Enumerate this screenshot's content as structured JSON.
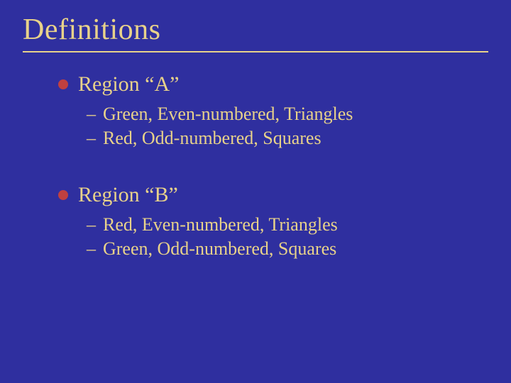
{
  "colors": {
    "background": "#2f2f9f",
    "text": "#e8d28a",
    "bullet": "#c04040",
    "underline": "#e8d28a"
  },
  "typography": {
    "title_fontsize": 42,
    "main_fontsize": 30,
    "sub_fontsize": 26,
    "font_family": "Times New Roman"
  },
  "title": "Definitions",
  "groups": [
    {
      "heading": "Region “A”",
      "items": [
        "Green, Even-numbered, Triangles",
        "Red, Odd-numbered, Squares"
      ]
    },
    {
      "heading": "Region “B”",
      "items": [
        "Red, Even-numbered, Triangles",
        "Green, Odd-numbered, Squares"
      ]
    }
  ]
}
